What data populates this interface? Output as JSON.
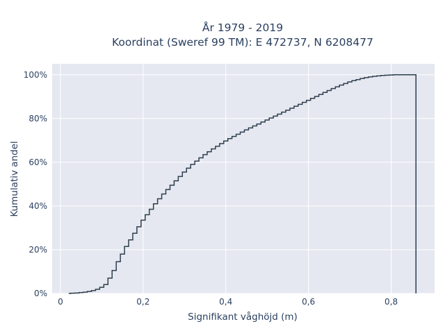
{
  "chart_data": {
    "type": "line",
    "line_shape": "step",
    "title_lines": [
      "År 1979 - 2019",
      "Koordinat (Sweref 99 TM): E 472737, N 6208477"
    ],
    "xlabel": "Signifikant våghöjd (m)",
    "ylabel": "Kumulativ andel",
    "xlim": [
      -0.02,
      0.905
    ],
    "ylim": [
      0,
      1.05
    ],
    "x_ticks": [
      0,
      0.2,
      0.4,
      0.6,
      0.8
    ],
    "x_tick_labels": [
      "0",
      "0,2",
      "0,4",
      "0,6",
      "0,8"
    ],
    "y_ticks": [
      0,
      0.2,
      0.4,
      0.6,
      0.8,
      1.0
    ],
    "y_tick_labels": [
      "0%",
      "20%",
      "40%",
      "60%",
      "80%",
      "100%"
    ],
    "grid": true,
    "legend": "none",
    "colors": {
      "line": "#2f3e4e",
      "plot_bg": "#e5e8f0",
      "grid": "#ffffff",
      "text": "#2a3f5f"
    },
    "series": [
      {
        "x": [
          0.02,
          0.03,
          0.04,
          0.05,
          0.06,
          0.07,
          0.08,
          0.09,
          0.1,
          0.11,
          0.12,
          0.13,
          0.14,
          0.15,
          0.16,
          0.17,
          0.18,
          0.19,
          0.2,
          0.21,
          0.22,
          0.23,
          0.24,
          0.25,
          0.26,
          0.27,
          0.28,
          0.29,
          0.3,
          0.31,
          0.32,
          0.33,
          0.34,
          0.35,
          0.36,
          0.37,
          0.38,
          0.39,
          0.4,
          0.41,
          0.42,
          0.43,
          0.44,
          0.45,
          0.46,
          0.47,
          0.48,
          0.49,
          0.5,
          0.51,
          0.52,
          0.53,
          0.54,
          0.55,
          0.56,
          0.57,
          0.58,
          0.59,
          0.6,
          0.61,
          0.62,
          0.63,
          0.64,
          0.65,
          0.66,
          0.67,
          0.68,
          0.69,
          0.7,
          0.71,
          0.72,
          0.73,
          0.74,
          0.75,
          0.76,
          0.77,
          0.78,
          0.79,
          0.8,
          0.81,
          0.82,
          0.83,
          0.84,
          0.85,
          0.86
        ],
        "y": [
          0.0,
          0.001,
          0.002,
          0.004,
          0.006,
          0.009,
          0.013,
          0.019,
          0.028,
          0.041,
          0.07,
          0.105,
          0.145,
          0.18,
          0.215,
          0.245,
          0.275,
          0.305,
          0.335,
          0.36,
          0.385,
          0.41,
          0.433,
          0.455,
          0.475,
          0.495,
          0.515,
          0.535,
          0.555,
          0.573,
          0.59,
          0.605,
          0.62,
          0.635,
          0.648,
          0.661,
          0.673,
          0.685,
          0.697,
          0.708,
          0.718,
          0.728,
          0.738,
          0.748,
          0.757,
          0.766,
          0.775,
          0.784,
          0.793,
          0.802,
          0.811,
          0.82,
          0.829,
          0.838,
          0.847,
          0.856,
          0.865,
          0.874,
          0.883,
          0.892,
          0.901,
          0.91,
          0.919,
          0.928,
          0.937,
          0.945,
          0.953,
          0.96,
          0.967,
          0.973,
          0.978,
          0.983,
          0.987,
          0.99,
          0.993,
          0.995,
          0.997,
          0.998,
          0.999,
          1.0,
          1.0,
          1.0,
          1.0,
          1.0,
          1.0
        ]
      }
    ]
  }
}
